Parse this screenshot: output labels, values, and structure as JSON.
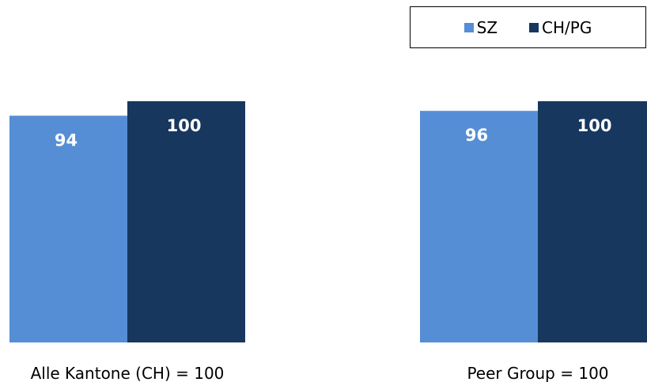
{
  "chart_data": {
    "type": "bar",
    "categories": [
      "Alle Kantone (CH) = 100",
      "Peer Group = 100"
    ],
    "series": [
      {
        "name": "SZ",
        "values": [
          94,
          96
        ]
      },
      {
        "name": "CH/PG",
        "values": [
          100,
          100
        ]
      }
    ],
    "ylim": [
      0,
      100
    ],
    "grid": false,
    "legend_position": "top-right",
    "colors": {
      "SZ": "#558ED5",
      "CH/PG": "#17375E"
    }
  }
}
